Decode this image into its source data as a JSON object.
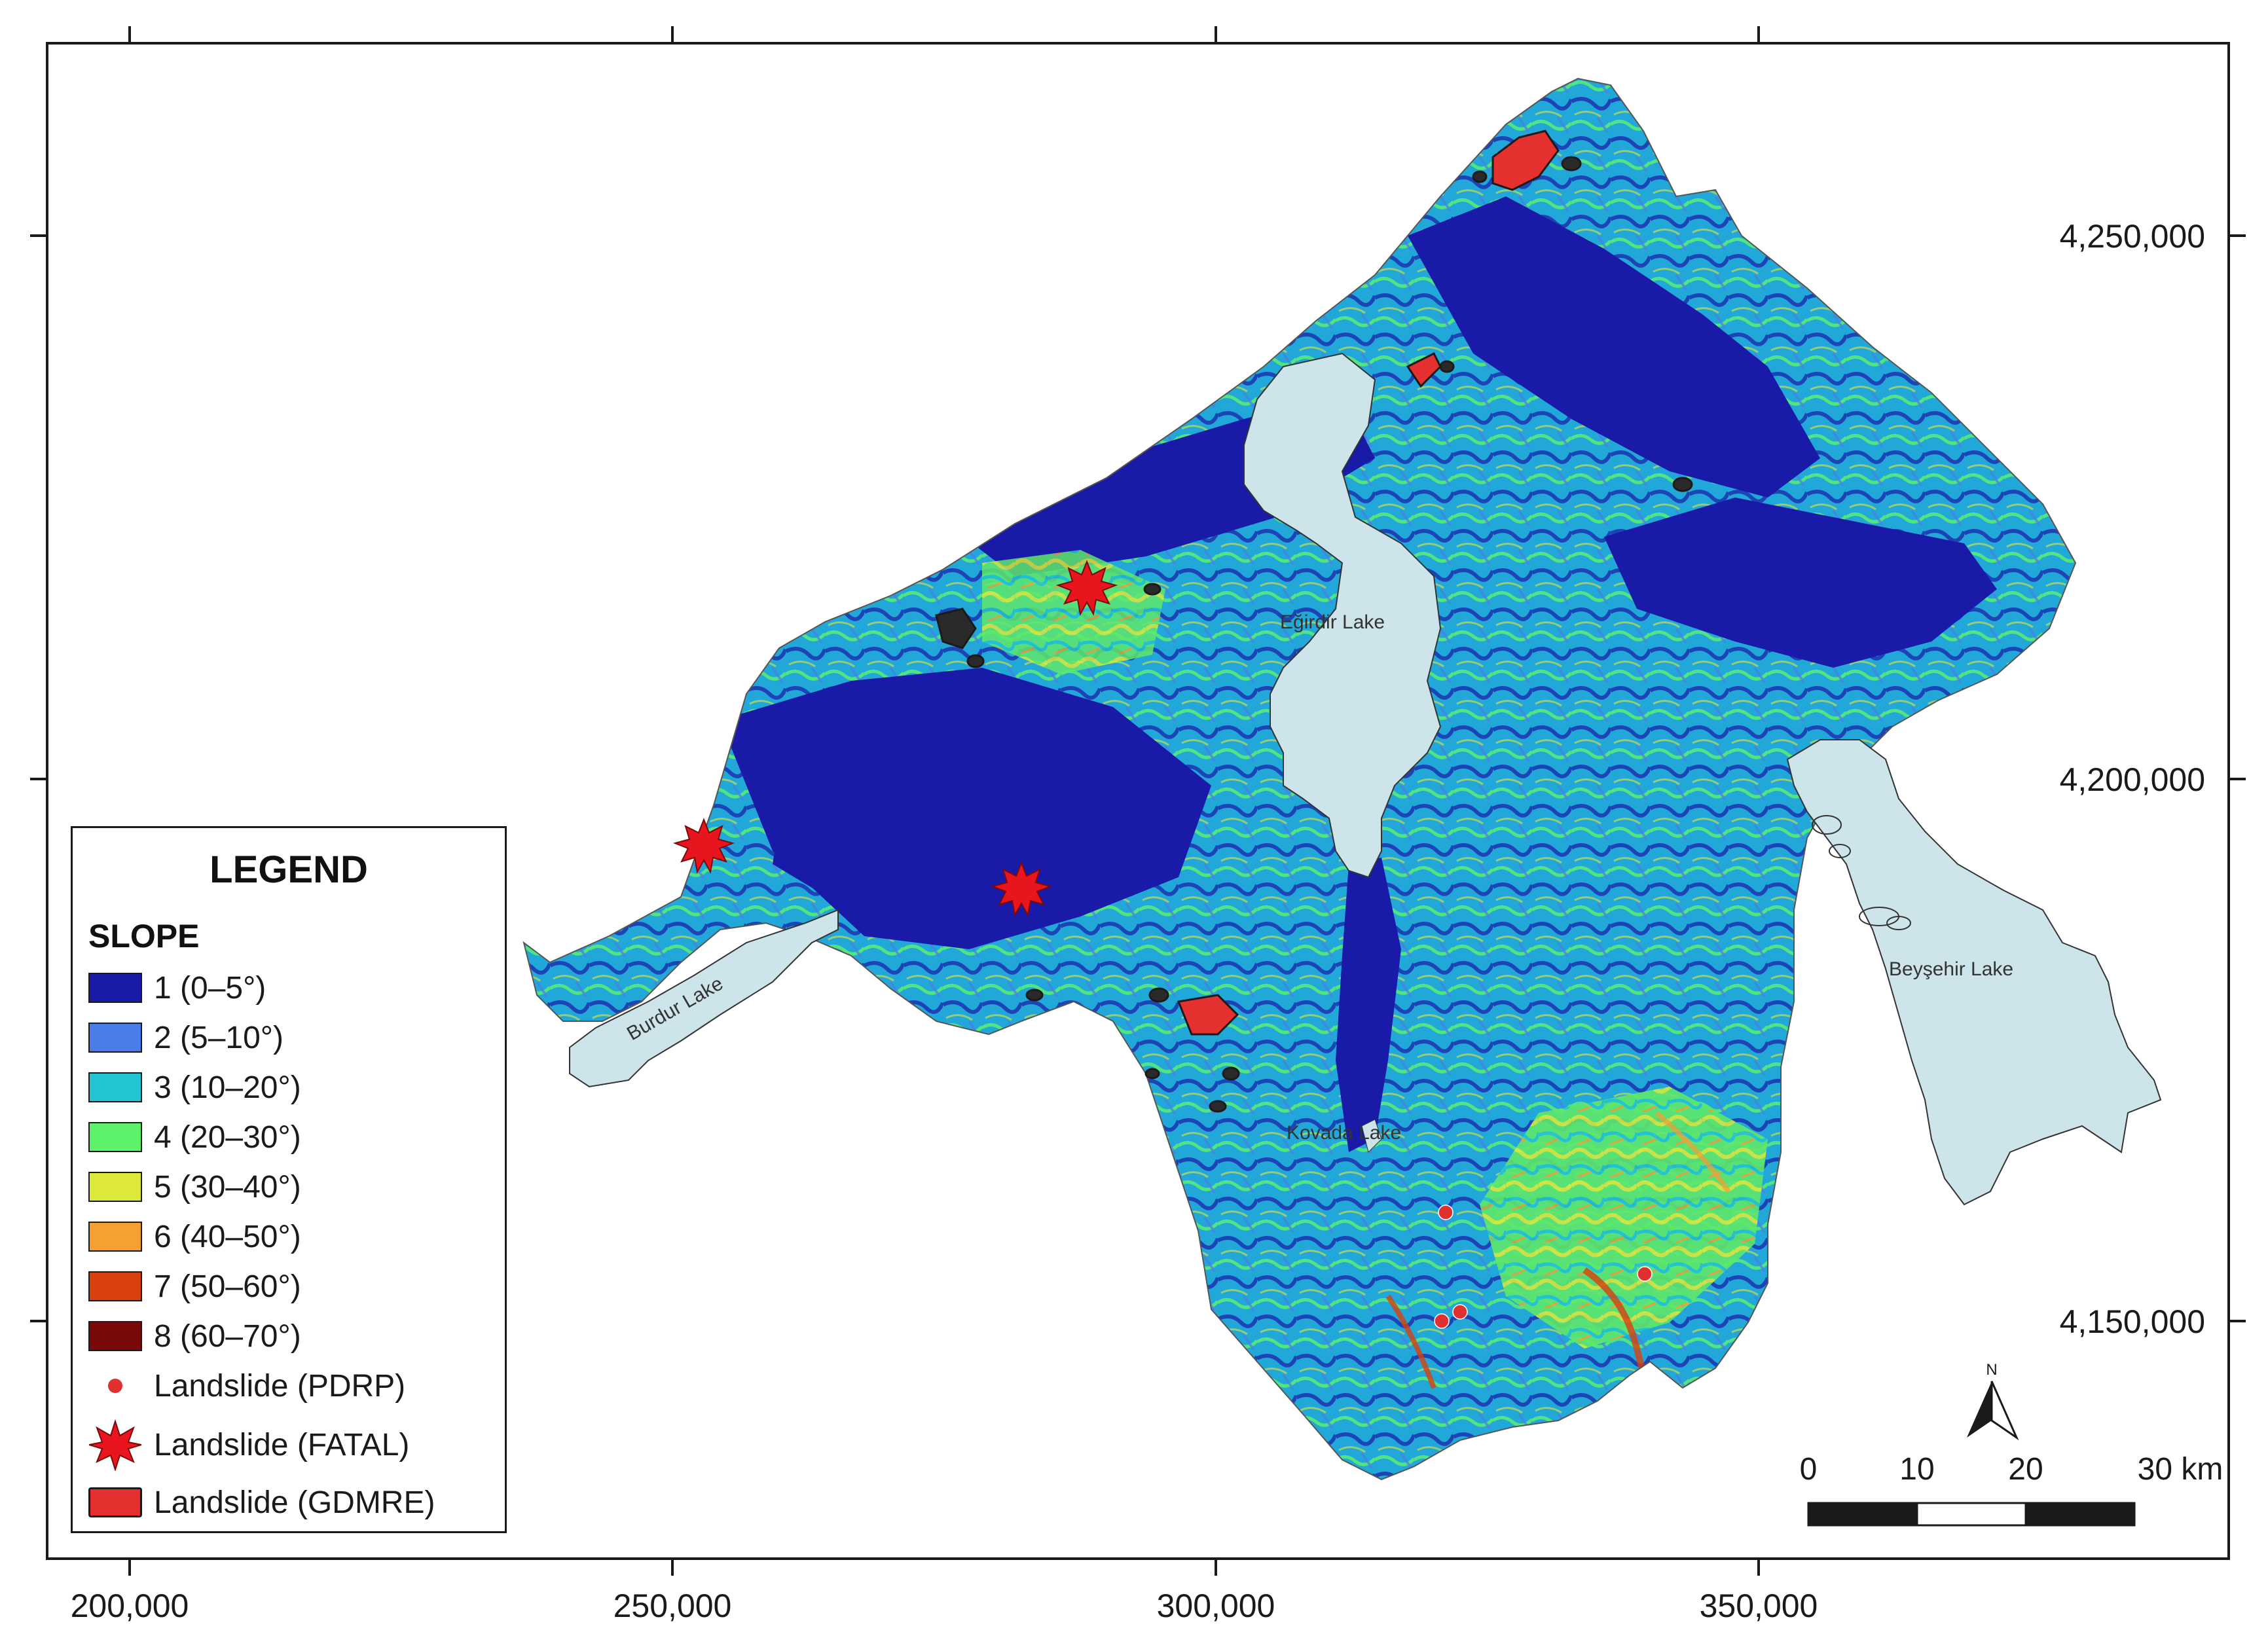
{
  "axes": {
    "x_ticks": [
      "200,000",
      "250,000",
      "300,000",
      "350,000"
    ],
    "y_ticks": [
      "4,250,000",
      "4,200,000",
      "4,150,000"
    ]
  },
  "lakes": {
    "egirdir": "Eğirdir Lake",
    "burdur": "Burdur Lake",
    "beysehir": "Beyşehir Lake",
    "kovada": "Kovada Lake"
  },
  "legend": {
    "title": "LEGEND",
    "subtitle": "SLOPE",
    "slope_classes": [
      {
        "label": "1 (0–5°)",
        "color": "#1a1aa8"
      },
      {
        "label": "2 (5–10°)",
        "color": "#4a7de8"
      },
      {
        "label": "3 (10–20°)",
        "color": "#22c4d4"
      },
      {
        "label": "4 (20–30°)",
        "color": "#5ef26a"
      },
      {
        "label": "5 (30–40°)",
        "color": "#dce83a"
      },
      {
        "label": "6 (40–50°)",
        "color": "#f5a030"
      },
      {
        "label": "7 (50–60°)",
        "color": "#d8400e"
      },
      {
        "label": "8 (60–70°)",
        "color": "#7a0a0a"
      }
    ],
    "landslide_pdrp": "Landslide (PDRP)",
    "landslide_fatal": "Landslide (FATAL)",
    "landslide_gdmre": "Landslide (GDMRE)"
  },
  "north_arrow": {
    "label": "N"
  },
  "scale_bar": {
    "labels": [
      "0",
      "10",
      "20",
      "30 km"
    ]
  },
  "colors": {
    "lake": "#cde4ea",
    "pdrp": "#e03030",
    "fatal": "#e8141e",
    "gdmre": "#e53030",
    "border": "#1a1a1a"
  }
}
